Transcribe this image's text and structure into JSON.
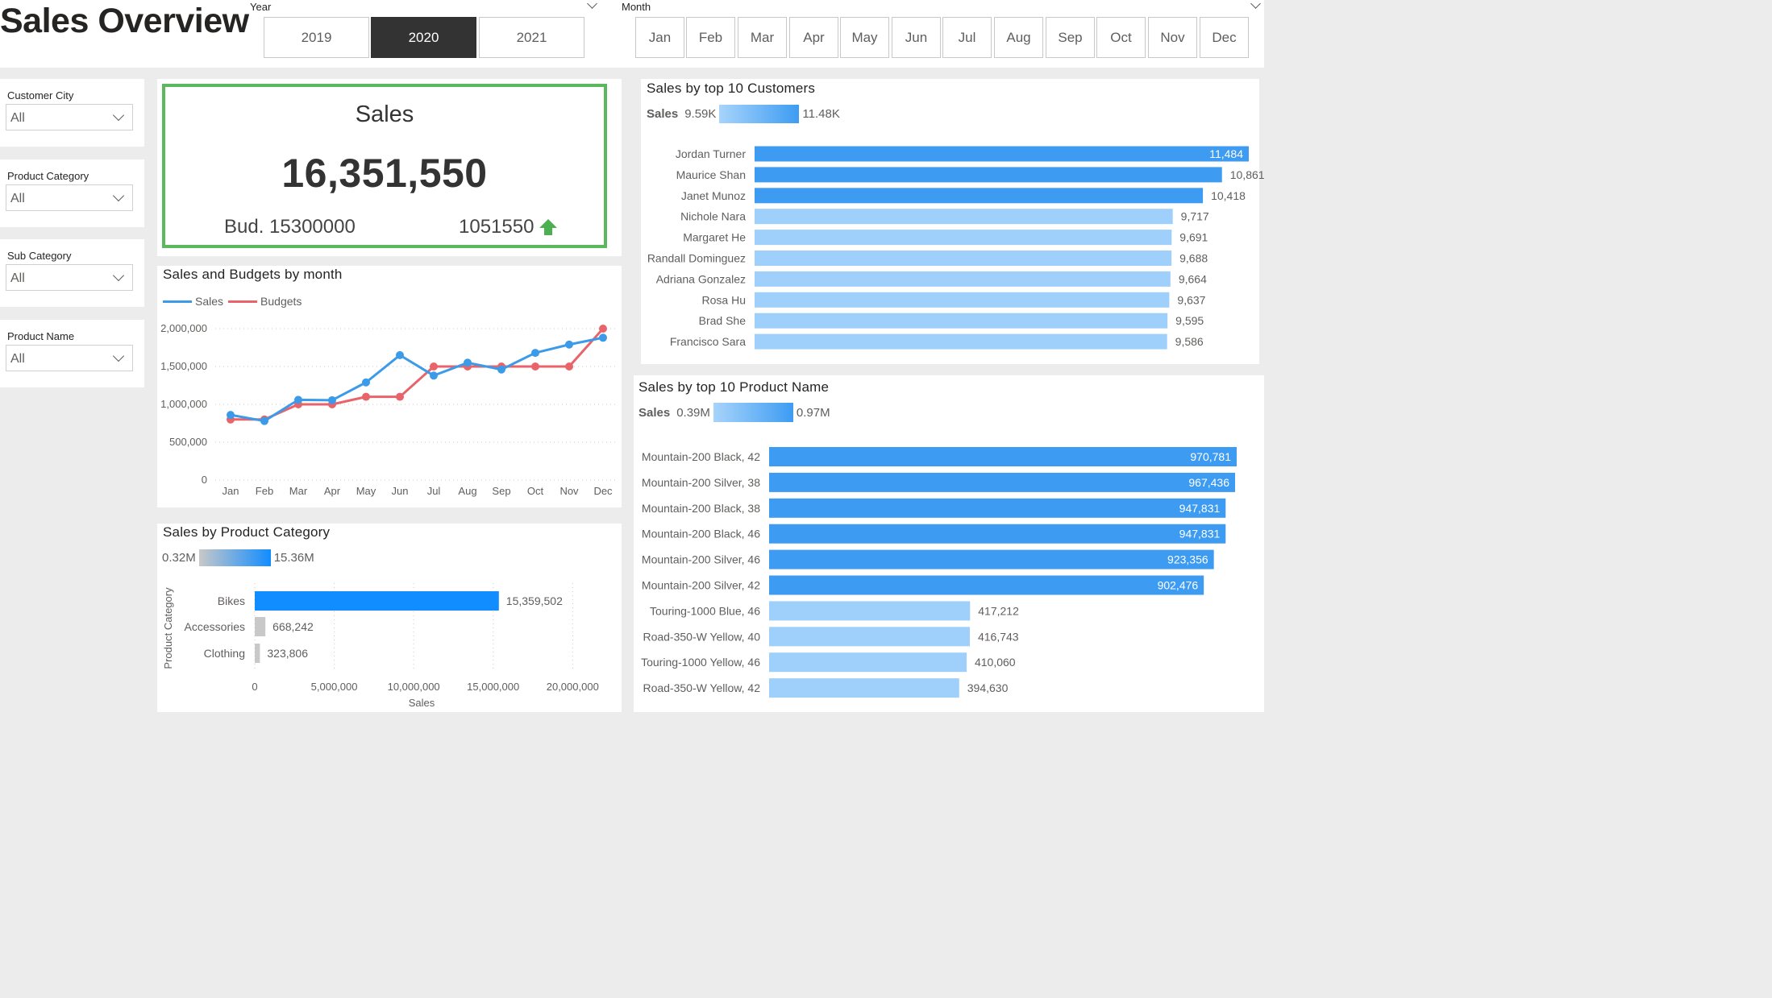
{
  "header": {
    "title": "Sales Overview"
  },
  "year_slicer": {
    "label": "Year",
    "options": [
      "2019",
      "2020",
      "2021"
    ],
    "selected": "2020"
  },
  "month_slicer": {
    "label": "Month",
    "options": [
      "Jan",
      "Feb",
      "Mar",
      "Apr",
      "May",
      "Jun",
      "Jul",
      "Aug",
      "Sep",
      "Oct",
      "Nov",
      "Dec"
    ]
  },
  "filters": [
    {
      "label": "Customer City",
      "value": "All"
    },
    {
      "label": "Product Category",
      "value": "All"
    },
    {
      "label": "Sub Category",
      "value": "All"
    },
    {
      "label": "Product Name",
      "value": "All"
    }
  ],
  "kpi": {
    "title": "Sales",
    "value": "16,351,550",
    "budget": "Bud. 15300000",
    "variance": "1051550",
    "trend": "up",
    "border_color": "#5cb85c",
    "arrow_color": "#4caf50"
  },
  "colors": {
    "sales_line": "#3c9be8",
    "budget_line": "#e8646a",
    "bar_dark": "#3d9cf2",
    "bar_light": "#9fd0fb",
    "bar_category_main": "#118dff",
    "bar_category_grey": "#c8c8c8"
  },
  "chart_data": [
    {
      "id": "sales_budget_month",
      "type": "line",
      "title": "Sales and Budgets by month",
      "categories": [
        "Jan",
        "Feb",
        "Mar",
        "Apr",
        "May",
        "Jun",
        "Jul",
        "Aug",
        "Sep",
        "Oct",
        "Nov",
        "Dec"
      ],
      "series": [
        {
          "name": "Sales",
          "values": [
            860000,
            780000,
            1060000,
            1055000,
            1290000,
            1650000,
            1380000,
            1550000,
            1460000,
            1680000,
            1790000,
            1880000
          ]
        },
        {
          "name": "Budgets",
          "values": [
            800000,
            800000,
            1000000,
            1000000,
            1100000,
            1100000,
            1500000,
            1500000,
            1500000,
            1500000,
            1500000,
            2000000
          ]
        }
      ],
      "ylim": [
        0,
        2000000
      ],
      "yticks": [
        "0",
        "500,000",
        "1,000,000",
        "1,500,000",
        "2,000,000"
      ],
      "grid": true,
      "legend": "top-left"
    },
    {
      "id": "sales_by_category",
      "type": "bar",
      "orientation": "horizontal",
      "title": "Sales by Product Category",
      "categories": [
        "Bikes",
        "Accessories",
        "Clothing"
      ],
      "values": [
        15359502,
        668242,
        323806
      ],
      "value_labels": [
        "15,359,502",
        "668,242",
        "323,806"
      ],
      "xlabel": "Sales",
      "ylabel": "Product Category",
      "xlim": [
        0,
        21000000
      ],
      "xticks": [
        "0",
        "5,000,000",
        "10,000,000",
        "15,000,000",
        "20,000,000"
      ],
      "gradient_min": "0.32M",
      "gradient_max": "15.36M"
    },
    {
      "id": "sales_top_customers",
      "type": "bar",
      "orientation": "horizontal",
      "title": "Sales by top 10 Customers",
      "categories": [
        "Jordan Turner",
        "Maurice Shan",
        "Janet Munoz",
        "Nichole Nara",
        "Margaret He",
        "Randall Dominguez",
        "Adriana Gonzalez",
        "Rosa Hu",
        "Brad She",
        "Francisco Sara"
      ],
      "values": [
        11484,
        10861,
        10418,
        9717,
        9691,
        9688,
        9664,
        9637,
        9595,
        9586
      ],
      "value_labels": [
        "11,484",
        "10,861",
        "10,418",
        "9,717",
        "9,691",
        "9,688",
        "9,664",
        "9,637",
        "9,595",
        "9,586"
      ],
      "legend_label": "Sales",
      "gradient_min": "9.59K",
      "gradient_max": "11.48K"
    },
    {
      "id": "sales_top_products",
      "type": "bar",
      "orientation": "horizontal",
      "title": "Sales by top 10 Product Name",
      "categories": [
        "Mountain-200 Black, 42",
        "Mountain-200 Silver, 38",
        "Mountain-200 Black, 38",
        "Mountain-200 Black, 46",
        "Mountain-200 Silver, 46",
        "Mountain-200 Silver, 42",
        "Touring-1000 Blue, 46",
        "Road-350-W Yellow, 40",
        "Touring-1000 Yellow, 46",
        "Road-350-W Yellow, 42"
      ],
      "values": [
        970781,
        967436,
        947831,
        947831,
        923356,
        902476,
        417212,
        416743,
        410060,
        394630
      ],
      "value_labels": [
        "970,781",
        "967,436",
        "947,831",
        "947,831",
        "923,356",
        "902,476",
        "417,212",
        "416,743",
        "410,060",
        "394,630"
      ],
      "legend_label": "Sales",
      "gradient_min": "0.39M",
      "gradient_max": "0.97M"
    }
  ]
}
